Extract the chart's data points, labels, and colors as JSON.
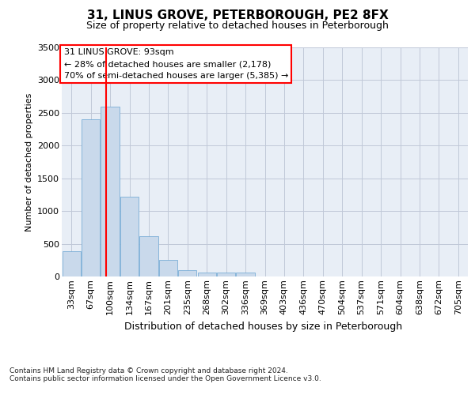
{
  "title1": "31, LINUS GROVE, PETERBOROUGH, PE2 8FX",
  "title2": "Size of property relative to detached houses in Peterborough",
  "xlabel": "Distribution of detached houses by size in Peterborough",
  "ylabel": "Number of detached properties",
  "footnote": "Contains HM Land Registry data © Crown copyright and database right 2024.\nContains public sector information licensed under the Open Government Licence v3.0.",
  "categories": [
    "33sqm",
    "67sqm",
    "100sqm",
    "134sqm",
    "167sqm",
    "201sqm",
    "235sqm",
    "268sqm",
    "302sqm",
    "336sqm",
    "369sqm",
    "403sqm",
    "436sqm",
    "470sqm",
    "504sqm",
    "537sqm",
    "571sqm",
    "604sqm",
    "638sqm",
    "672sqm",
    "705sqm"
  ],
  "values": [
    390,
    2400,
    2600,
    1220,
    620,
    250,
    100,
    65,
    60,
    55,
    0,
    0,
    0,
    0,
    0,
    0,
    0,
    0,
    0,
    0,
    0
  ],
  "bar_color": "#c9d9eb",
  "bar_edge_color": "#7aaed6",
  "annotation_title": "31 LINUS GROVE: 93sqm",
  "annotation_line1": "← 28% of detached houses are smaller (2,178)",
  "annotation_line2": "70% of semi-detached houses are larger (5,385) →",
  "ylim": [
    0,
    3500
  ],
  "yticks": [
    0,
    500,
    1000,
    1500,
    2000,
    2500,
    3000,
    3500
  ],
  "background_color": "#e8eef6",
  "plot_background": "#ffffff",
  "grid_color": "#c0c8d8",
  "title1_fontsize": 11,
  "title2_fontsize": 9,
  "xlabel_fontsize": 9,
  "ylabel_fontsize": 8,
  "tick_fontsize": 8,
  "annot_fontsize": 8
}
